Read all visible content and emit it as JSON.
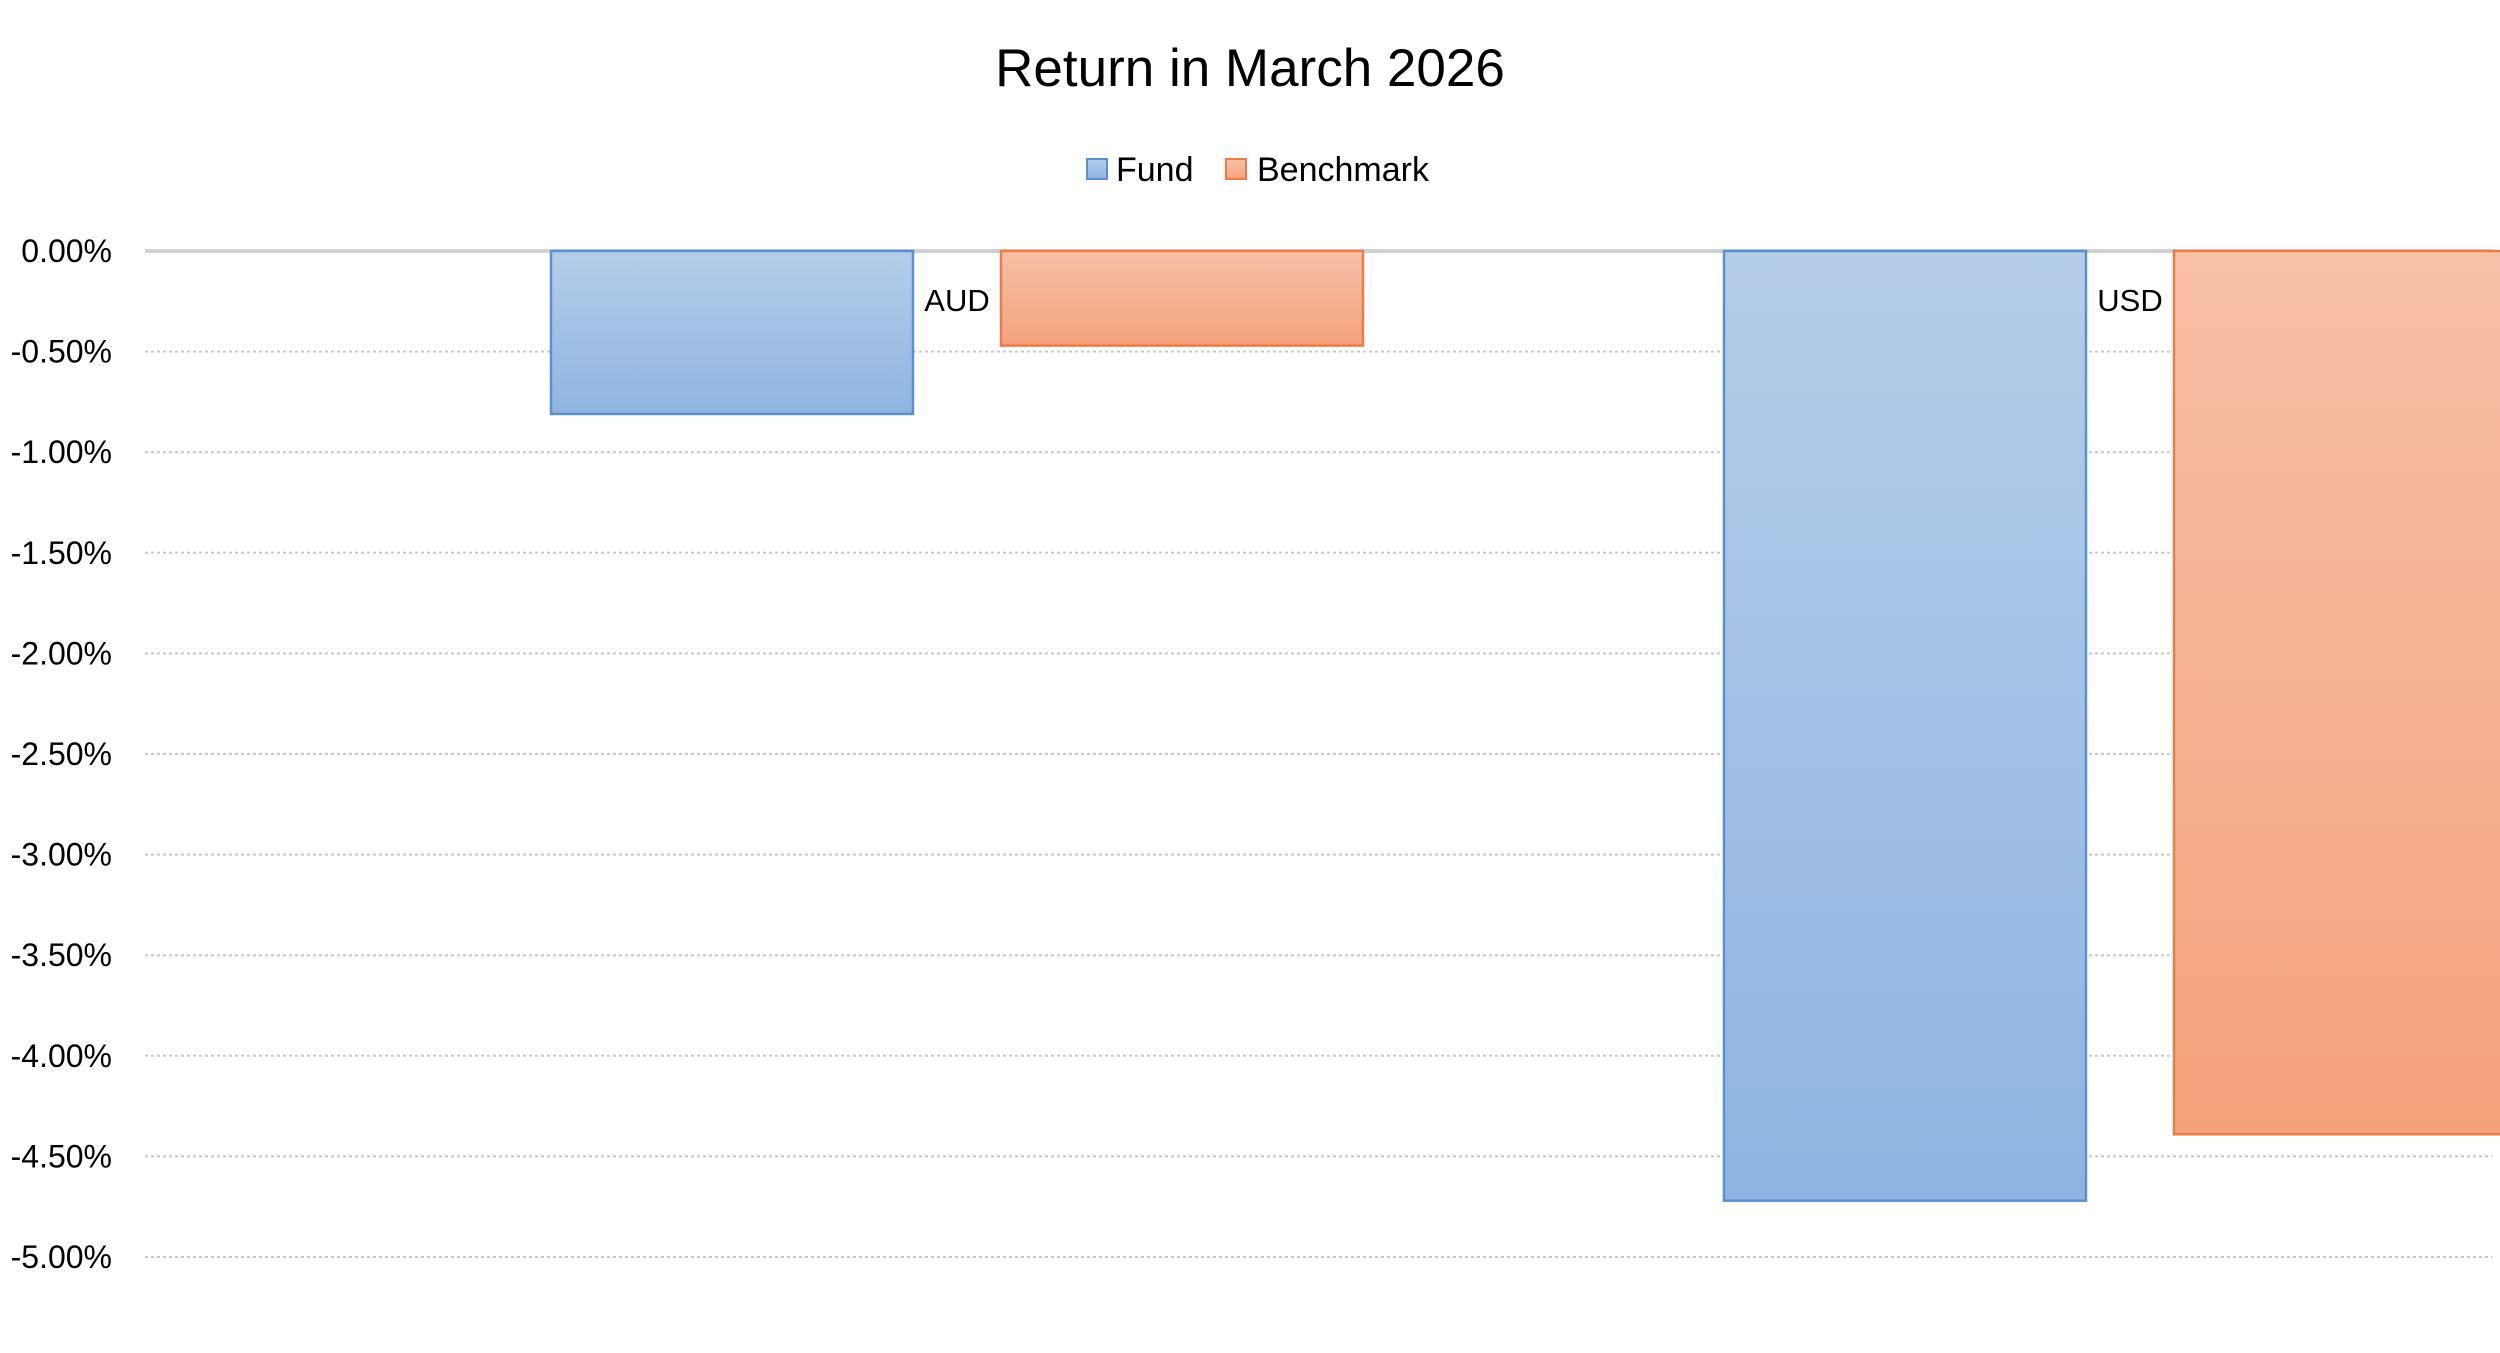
{
  "chart_data": {
    "type": "bar",
    "title": "Return in March 2026",
    "categories": [
      "AUD",
      "USD"
    ],
    "series": [
      {
        "name": "Fund",
        "values": [
          -0.81,
          -4.72
        ]
      },
      {
        "name": "Benchmark",
        "values": [
          -0.47,
          -4.39
        ]
      }
    ],
    "ylim": [
      -5.0,
      0.0
    ],
    "yticks": [
      "0.00%",
      "-0.50%",
      "-1.00%",
      "-1.50%",
      "-2.00%",
      "-2.50%",
      "-3.00%",
      "-3.50%",
      "-4.00%",
      "-4.50%",
      "-5.00%"
    ],
    "grid": true,
    "legend_position": "top-center",
    "colors": {
      "fund_fill_top": "#b5cde9",
      "fund_fill_bottom": "#8fb4e2",
      "fund_stroke": "#5b8fcd",
      "benchmark_fill_top": "#f7c0a8",
      "benchmark_fill_bottom": "#f5a27c",
      "benchmark_stroke": "#ec7c45",
      "grid": "#c8c8c8",
      "zero_line": "#d0d0d0"
    }
  }
}
